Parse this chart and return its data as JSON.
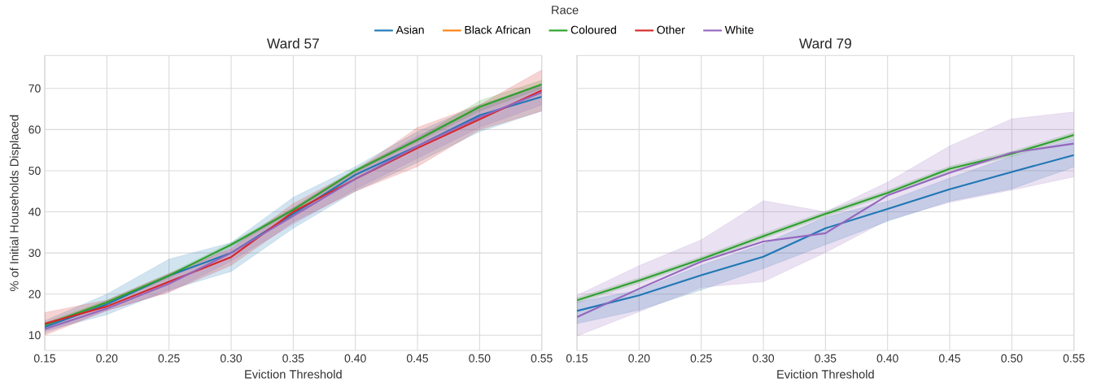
{
  "chart_data": [
    {
      "type": "line",
      "title": "Ward 57",
      "xlabel": "Eviction Threshold",
      "ylabel": "% of Initial Households Displaced",
      "legend_title": "Race",
      "legend": "top",
      "grid": true,
      "x": [
        0.15,
        0.2,
        0.25,
        0.3,
        0.35,
        0.4,
        0.45,
        0.5,
        0.55
      ],
      "xlim": [
        0.15,
        0.55
      ],
      "ylim": [
        6.3,
        78
      ],
      "xticks": [
        0.15,
        {
          "value": 0.2,
          "label": "0.20"
        },
        0.25,
        {
          "value": 0.3,
          "label": "0.30"
        },
        0.35,
        {
          "value": 0.4,
          "label": "0.40"
        },
        0.45,
        {
          "value": 0.5,
          "label": "0.50"
        },
        0.55
      ],
      "yticks": [
        10,
        20,
        30,
        40,
        50,
        60,
        70
      ],
      "series": [
        {
          "name": "Asian",
          "color": "#1f77b4",
          "values": [
            12,
            17.5,
            24.5,
            30,
            39.5,
            49,
            56,
            63.5,
            68
          ],
          "lower": [
            11,
            15,
            21,
            25.5,
            36,
            45,
            52,
            59.5,
            64.5
          ],
          "upper": [
            13.5,
            20,
            28.5,
            32.5,
            43.5,
            51,
            59.5,
            66,
            71
          ]
        },
        {
          "name": "Black African",
          "color": "#ff7f0e",
          "values": [
            null,
            null,
            null,
            null,
            null,
            null,
            null,
            null,
            null
          ]
        },
        {
          "name": "Coloured",
          "color": "#2ca02c",
          "values": [
            12.5,
            18,
            24.5,
            32,
            40.5,
            50,
            57.5,
            65.5,
            71
          ],
          "lower": [
            12,
            17.5,
            24,
            31.5,
            40,
            49.5,
            57,
            64.5,
            70
          ],
          "upper": [
            13,
            18.5,
            25,
            32.5,
            41,
            50.5,
            58,
            67,
            72
          ]
        },
        {
          "name": "Other",
          "color": "#d62728",
          "values": [
            12.8,
            17,
            23,
            29,
            40,
            48,
            55.5,
            62.5,
            69.5
          ],
          "lower": [
            10,
            16,
            20.5,
            27,
            37.5,
            45,
            51,
            60,
            64.5
          ],
          "upper": [
            15.5,
            18.5,
            25,
            31,
            42,
            50,
            60.5,
            66,
            74.5
          ]
        },
        {
          "name": "White",
          "color": "#9467bd",
          "values": [
            11.5,
            16.5,
            22.5,
            30,
            39,
            48,
            56,
            63,
            69
          ],
          "lower": [
            10.5,
            16,
            20.5,
            28,
            37,
            45.5,
            53,
            60.5,
            66
          ],
          "upper": [
            12.5,
            18,
            24,
            31.5,
            41,
            50,
            58.5,
            65,
            71
          ]
        }
      ]
    },
    {
      "type": "line",
      "title": "Ward 79",
      "xlabel": "Eviction Threshold",
      "grid": true,
      "tick_labels": "x",
      "x": [
        0.15,
        0.2,
        0.25,
        0.3,
        0.35,
        0.4,
        0.45,
        0.5,
        0.55
      ],
      "xlim": [
        0.15,
        0.55
      ],
      "ylim": [
        6.3,
        78
      ],
      "xticks": [
        0.15,
        {
          "value": 0.2,
          "label": "0.20"
        },
        0.25,
        {
          "value": 0.3,
          "label": "0.30"
        },
        0.35,
        {
          "value": 0.4,
          "label": "0.40"
        },
        0.45,
        {
          "value": 0.5,
          "label": "0.50"
        },
        0.55
      ],
      "yticks": [
        10,
        20,
        30,
        40,
        50,
        60,
        70
      ],
      "series": [
        {
          "color": "#1f77b4",
          "values": [
            15.9,
            19.7,
            24.6,
            29.1,
            36,
            40.7,
            45.5,
            49.7,
            53.8
          ],
          "lower": [
            12.8,
            16.1,
            21,
            26.2,
            32,
            37.7,
            42.6,
            45.6,
            50.9
          ],
          "upper": [
            18,
            21,
            27,
            32.2,
            38.7,
            42.6,
            48.2,
            53.5,
            57.7
          ]
        },
        {
          "color": "#2ca02c",
          "values": [
            18.5,
            23.3,
            28.5,
            34.1,
            39.5,
            44.6,
            50.5,
            54.1,
            58.7
          ],
          "lower": [
            17.9,
            22.7,
            27.9,
            33.5,
            38.9,
            44,
            49.9,
            53.5,
            58.1
          ],
          "upper": [
            19.1,
            23.9,
            29.1,
            34.7,
            40.1,
            45.2,
            51.1,
            54.7,
            59.3
          ]
        },
        {
          "color": "#9467bd",
          "values": [
            14.4,
            21.3,
            27.9,
            32.8,
            34.8,
            44,
            49.5,
            54.4,
            56.6
          ],
          "lower": [
            9.8,
            15.7,
            21.6,
            23,
            30.1,
            38,
            42.3,
            45.3,
            48.5
          ],
          "upper": [
            19.7,
            26.9,
            33.2,
            42.7,
            40,
            47.2,
            56,
            62.6,
            64.3
          ]
        }
      ]
    }
  ]
}
